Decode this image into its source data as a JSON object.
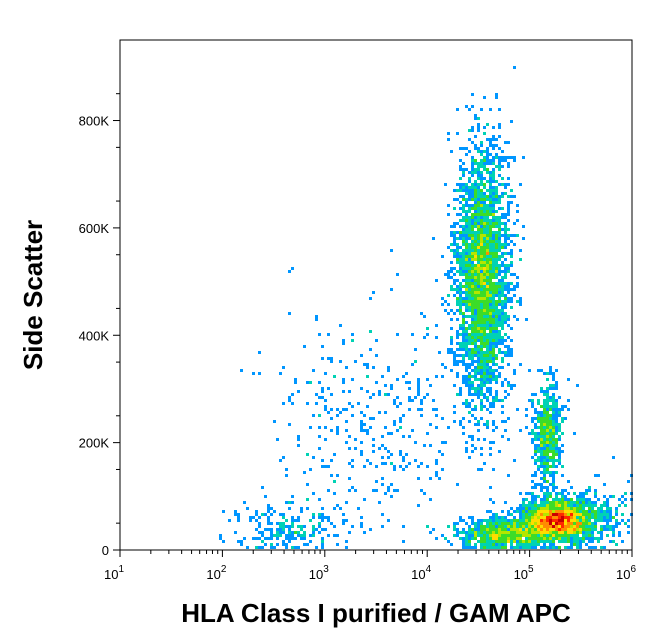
{
  "chart_data": {
    "type": "scatter",
    "style": "density-dot-plot",
    "title": "",
    "xlabel": "HLA Class I purified / GAM APC",
    "ylabel": "Side Scatter",
    "x_scale": "log",
    "xlim": [
      10,
      1000000
    ],
    "ylim": [
      0,
      950000
    ],
    "x_ticks": [
      {
        "value": 10,
        "base": "10",
        "exp": "1"
      },
      {
        "value": 100,
        "base": "10",
        "exp": "2"
      },
      {
        "value": 1000,
        "base": "10",
        "exp": "3"
      },
      {
        "value": 10000,
        "base": "10",
        "exp": "4"
      },
      {
        "value": 100000,
        "base": "10",
        "exp": "5"
      },
      {
        "value": 1000000,
        "base": "10",
        "exp": "6"
      }
    ],
    "y_ticks": [
      {
        "value": 0,
        "label": "0"
      },
      {
        "value": 200000,
        "label": "200K"
      },
      {
        "value": 400000,
        "label": "400K"
      },
      {
        "value": 600000,
        "label": "600K"
      },
      {
        "value": 800000,
        "label": "800K"
      }
    ],
    "grid": false,
    "legend": "none",
    "density_colors": [
      "#0000ff",
      "#0096ff",
      "#00d2b4",
      "#3cdc28",
      "#b4e600",
      "#ffdc00",
      "#ff8c00",
      "#ff2800",
      "#c80000"
    ],
    "populations": [
      {
        "center_x": 35000,
        "center_y": 510000,
        "log_spread_x": 0.13,
        "spread_y": 115000,
        "relative_count": 3400
      },
      {
        "center_x": 180000,
        "center_y": 55000,
        "log_spread_x": 0.16,
        "spread_y": 18000,
        "relative_count": 2200
      },
      {
        "center_x": 60000,
        "center_y": 30000,
        "log_spread_x": 0.22,
        "spread_y": 15000,
        "relative_count": 1000
      },
      {
        "center_x": 150000,
        "center_y": 215000,
        "log_spread_x": 0.07,
        "spread_y": 45000,
        "relative_count": 650
      },
      {
        "center_x": 350000,
        "center_y": 60000,
        "log_spread_x": 0.25,
        "spread_y": 28000,
        "relative_count": 500
      },
      {
        "center_x": 400,
        "center_y": 40000,
        "log_spread_x": 0.28,
        "spread_y": 25000,
        "relative_count": 220
      },
      {
        "center_x": 3000,
        "center_y": 230000,
        "log_spread_x": 0.55,
        "spread_y": 110000,
        "relative_count": 380
      }
    ]
  }
}
